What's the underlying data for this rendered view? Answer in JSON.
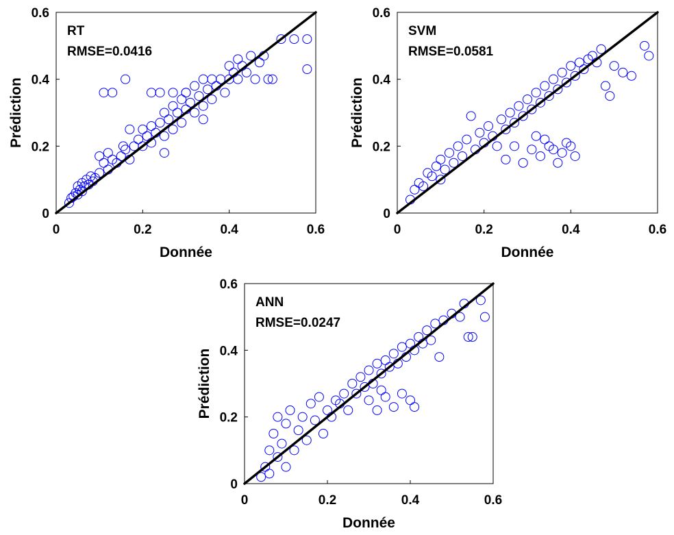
{
  "chart_data": [
    {
      "type": "scatter",
      "model": "RT",
      "annotation": "RMSE=0.0416",
      "xlabel": "Donnée",
      "ylabel": "Prédiction",
      "xlim": [
        0,
        0.6
      ],
      "ylim": [
        0,
        0.6
      ],
      "xticks": [
        "0",
        "0.2",
        "0.4",
        "0.6"
      ],
      "yticks": [
        "0",
        "0.2",
        "0.4",
        "0.6"
      ],
      "marker_color": "#0000ff",
      "line_color": "#000000",
      "reference_line": [
        [
          0,
          0
        ],
        [
          0.6,
          0.6
        ]
      ],
      "points": [
        [
          0.03,
          0.03
        ],
        [
          0.035,
          0.045
        ],
        [
          0.04,
          0.05
        ],
        [
          0.045,
          0.06
        ],
        [
          0.05,
          0.055
        ],
        [
          0.05,
          0.08
        ],
        [
          0.055,
          0.07
        ],
        [
          0.06,
          0.065
        ],
        [
          0.06,
          0.09
        ],
        [
          0.065,
          0.08
        ],
        [
          0.07,
          0.1
        ],
        [
          0.075,
          0.085
        ],
        [
          0.08,
          0.11
        ],
        [
          0.085,
          0.095
        ],
        [
          0.09,
          0.105
        ],
        [
          0.1,
          0.12
        ],
        [
          0.1,
          0.17
        ],
        [
          0.11,
          0.15
        ],
        [
          0.12,
          0.13
        ],
        [
          0.12,
          0.18
        ],
        [
          0.13,
          0.16
        ],
        [
          0.14,
          0.15
        ],
        [
          0.15,
          0.17
        ],
        [
          0.155,
          0.2
        ],
        [
          0.16,
          0.19
        ],
        [
          0.17,
          0.16
        ],
        [
          0.17,
          0.25
        ],
        [
          0.18,
          0.2
        ],
        [
          0.19,
          0.22
        ],
        [
          0.2,
          0.2
        ],
        [
          0.2,
          0.25
        ],
        [
          0.21,
          0.23
        ],
        [
          0.22,
          0.21
        ],
        [
          0.22,
          0.26
        ],
        [
          0.23,
          0.24
        ],
        [
          0.24,
          0.27
        ],
        [
          0.25,
          0.23
        ],
        [
          0.25,
          0.3
        ],
        [
          0.26,
          0.28
        ],
        [
          0.27,
          0.25
        ],
        [
          0.27,
          0.32
        ],
        [
          0.28,
          0.3
        ],
        [
          0.29,
          0.27
        ],
        [
          0.29,
          0.34
        ],
        [
          0.3,
          0.31
        ],
        [
          0.3,
          0.36
        ],
        [
          0.31,
          0.33
        ],
        [
          0.32,
          0.3
        ],
        [
          0.32,
          0.38
        ],
        [
          0.33,
          0.35
        ],
        [
          0.34,
          0.32
        ],
        [
          0.34,
          0.4
        ],
        [
          0.35,
          0.37
        ],
        [
          0.36,
          0.34
        ],
        [
          0.36,
          0.4
        ],
        [
          0.37,
          0.38
        ],
        [
          0.38,
          0.4
        ],
        [
          0.39,
          0.36
        ],
        [
          0.4,
          0.4
        ],
        [
          0.4,
          0.44
        ],
        [
          0.41,
          0.42
        ],
        [
          0.42,
          0.4
        ],
        [
          0.42,
          0.46
        ],
        [
          0.43,
          0.44
        ],
        [
          0.44,
          0.42
        ],
        [
          0.45,
          0.47
        ],
        [
          0.46,
          0.4
        ],
        [
          0.47,
          0.45
        ],
        [
          0.48,
          0.47
        ],
        [
          0.49,
          0.4
        ],
        [
          0.5,
          0.4
        ],
        [
          0.52,
          0.52
        ],
        [
          0.55,
          0.52
        ],
        [
          0.58,
          0.52
        ],
        [
          0.58,
          0.43
        ],
        [
          0.22,
          0.36
        ],
        [
          0.24,
          0.36
        ],
        [
          0.27,
          0.36
        ],
        [
          0.3,
          0.36
        ],
        [
          0.13,
          0.36
        ],
        [
          0.11,
          0.36
        ],
        [
          0.16,
          0.4
        ],
        [
          0.25,
          0.18
        ],
        [
          0.34,
          0.28
        ]
      ]
    },
    {
      "type": "scatter",
      "model": "SVM",
      "annotation": "RMSE=0.0581",
      "xlabel": "Donnée",
      "ylabel": "Prédiction",
      "xlim": [
        0,
        0.6
      ],
      "ylim": [
        0,
        0.6
      ],
      "xticks": [
        "0",
        "0.2",
        "0.4",
        "0.6"
      ],
      "yticks": [
        "0",
        "0.2",
        "0.4",
        "0.6"
      ],
      "marker_color": "#0000ff",
      "line_color": "#000000",
      "reference_line": [
        [
          0,
          0
        ],
        [
          0.6,
          0.6
        ]
      ],
      "points": [
        [
          0.03,
          0.04
        ],
        [
          0.04,
          0.07
        ],
        [
          0.05,
          0.09
        ],
        [
          0.06,
          0.08
        ],
        [
          0.07,
          0.12
        ],
        [
          0.08,
          0.11
        ],
        [
          0.09,
          0.14
        ],
        [
          0.1,
          0.1
        ],
        [
          0.1,
          0.16
        ],
        [
          0.11,
          0.13
        ],
        [
          0.12,
          0.18
        ],
        [
          0.13,
          0.15
        ],
        [
          0.14,
          0.2
        ],
        [
          0.15,
          0.17
        ],
        [
          0.16,
          0.22
        ],
        [
          0.17,
          0.29
        ],
        [
          0.18,
          0.19
        ],
        [
          0.19,
          0.24
        ],
        [
          0.2,
          0.21
        ],
        [
          0.21,
          0.26
        ],
        [
          0.22,
          0.23
        ],
        [
          0.23,
          0.2
        ],
        [
          0.24,
          0.28
        ],
        [
          0.25,
          0.25
        ],
        [
          0.26,
          0.3
        ],
        [
          0.27,
          0.27
        ],
        [
          0.28,
          0.32
        ],
        [
          0.29,
          0.29
        ],
        [
          0.3,
          0.34
        ],
        [
          0.31,
          0.31
        ],
        [
          0.32,
          0.36
        ],
        [
          0.33,
          0.33
        ],
        [
          0.34,
          0.38
        ],
        [
          0.35,
          0.35
        ],
        [
          0.36,
          0.4
        ],
        [
          0.37,
          0.37
        ],
        [
          0.38,
          0.42
        ],
        [
          0.39,
          0.39
        ],
        [
          0.4,
          0.44
        ],
        [
          0.41,
          0.41
        ],
        [
          0.42,
          0.45
        ],
        [
          0.43,
          0.43
        ],
        [
          0.44,
          0.46
        ],
        [
          0.45,
          0.47
        ],
        [
          0.46,
          0.45
        ],
        [
          0.47,
          0.49
        ],
        [
          0.48,
          0.38
        ],
        [
          0.49,
          0.35
        ],
        [
          0.5,
          0.44
        ],
        [
          0.52,
          0.42
        ],
        [
          0.54,
          0.41
        ],
        [
          0.57,
          0.5
        ],
        [
          0.58,
          0.47
        ],
        [
          0.25,
          0.16
        ],
        [
          0.27,
          0.2
        ],
        [
          0.29,
          0.15
        ],
        [
          0.31,
          0.19
        ],
        [
          0.33,
          0.17
        ],
        [
          0.35,
          0.2
        ],
        [
          0.37,
          0.15
        ],
        [
          0.39,
          0.21
        ],
        [
          0.41,
          0.17
        ],
        [
          0.32,
          0.23
        ],
        [
          0.36,
          0.19
        ],
        [
          0.34,
          0.22
        ],
        [
          0.38,
          0.18
        ],
        [
          0.4,
          0.2
        ]
      ]
    },
    {
      "type": "scatter",
      "model": "ANN",
      "annotation": "RMSE=0.0247",
      "xlabel": "Donnée",
      "ylabel": "Prédiction",
      "xlim": [
        0,
        0.6
      ],
      "ylim": [
        0,
        0.6
      ],
      "xticks": [
        "0",
        "0.2",
        "0.4",
        "0.6"
      ],
      "yticks": [
        "0",
        "0.2",
        "0.4",
        "0.6"
      ],
      "marker_color": "#0000ff",
      "line_color": "#000000",
      "reference_line": [
        [
          0,
          0
        ],
        [
          0.6,
          0.6
        ]
      ],
      "points": [
        [
          0.04,
          0.02
        ],
        [
          0.05,
          0.05
        ],
        [
          0.06,
          0.03
        ],
        [
          0.06,
          0.1
        ],
        [
          0.07,
          0.15
        ],
        [
          0.08,
          0.08
        ],
        [
          0.08,
          0.2
        ],
        [
          0.09,
          0.12
        ],
        [
          0.1,
          0.05
        ],
        [
          0.1,
          0.18
        ],
        [
          0.11,
          0.22
        ],
        [
          0.12,
          0.1
        ],
        [
          0.13,
          0.16
        ],
        [
          0.14,
          0.2
        ],
        [
          0.15,
          0.13
        ],
        [
          0.16,
          0.24
        ],
        [
          0.17,
          0.19
        ],
        [
          0.18,
          0.26
        ],
        [
          0.19,
          0.15
        ],
        [
          0.2,
          0.22
        ],
        [
          0.21,
          0.2
        ],
        [
          0.22,
          0.25
        ],
        [
          0.23,
          0.24
        ],
        [
          0.24,
          0.27
        ],
        [
          0.25,
          0.22
        ],
        [
          0.26,
          0.3
        ],
        [
          0.27,
          0.27
        ],
        [
          0.28,
          0.32
        ],
        [
          0.29,
          0.29
        ],
        [
          0.3,
          0.34
        ],
        [
          0.31,
          0.3
        ],
        [
          0.32,
          0.36
        ],
        [
          0.33,
          0.33
        ],
        [
          0.34,
          0.37
        ],
        [
          0.35,
          0.35
        ],
        [
          0.36,
          0.39
        ],
        [
          0.37,
          0.36
        ],
        [
          0.38,
          0.41
        ],
        [
          0.39,
          0.38
        ],
        [
          0.4,
          0.42
        ],
        [
          0.41,
          0.4
        ],
        [
          0.42,
          0.44
        ],
        [
          0.43,
          0.42
        ],
        [
          0.44,
          0.46
        ],
        [
          0.45,
          0.43
        ],
        [
          0.46,
          0.48
        ],
        [
          0.47,
          0.38
        ],
        [
          0.48,
          0.49
        ],
        [
          0.5,
          0.51
        ],
        [
          0.52,
          0.5
        ],
        [
          0.53,
          0.54
        ],
        [
          0.54,
          0.44
        ],
        [
          0.55,
          0.44
        ],
        [
          0.57,
          0.55
        ],
        [
          0.58,
          0.5
        ],
        [
          0.3,
          0.25
        ],
        [
          0.32,
          0.22
        ],
        [
          0.34,
          0.26
        ],
        [
          0.36,
          0.23
        ],
        [
          0.38,
          0.27
        ],
        [
          0.4,
          0.25
        ],
        [
          0.41,
          0.23
        ],
        [
          0.33,
          0.28
        ]
      ]
    }
  ]
}
